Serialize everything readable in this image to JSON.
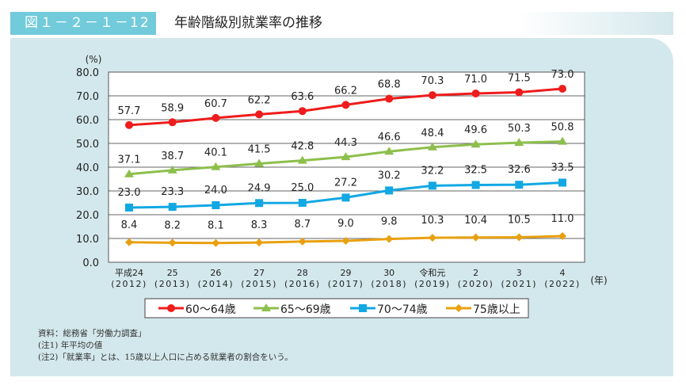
{
  "header": {
    "figure_number": "図１－２－１－12",
    "title": "年齢階級別就業率の推移"
  },
  "chart_data": {
    "type": "line",
    "ylabel": "(%)",
    "xlabel": "(年)",
    "ylim": [
      0,
      80
    ],
    "yticks": [
      "0.0",
      "10.0",
      "20.0",
      "30.0",
      "40.0",
      "50.0",
      "60.0",
      "70.0",
      "80.0"
    ],
    "categories": [
      [
        "平成24",
        "(2012)"
      ],
      [
        "25",
        "(2013)"
      ],
      [
        "26",
        "(2014)"
      ],
      [
        "27",
        "(2015)"
      ],
      [
        "28",
        "(2016)"
      ],
      [
        "29",
        "(2017)"
      ],
      [
        "30",
        "(2018)"
      ],
      [
        "令和元",
        "(2019)"
      ],
      [
        "2",
        "(2020)"
      ],
      [
        "3",
        "(2021)"
      ],
      [
        "4",
        "(2022)"
      ]
    ],
    "grid": true,
    "legend_position": "bottom",
    "series": [
      {
        "name": "60～64歳",
        "color": "#ee1c1c",
        "marker": "circle",
        "values": [
          57.7,
          58.9,
          60.7,
          62.2,
          63.6,
          66.2,
          68.8,
          70.3,
          71.0,
          71.5,
          73.0
        ]
      },
      {
        "name": "65～69歳",
        "color": "#8dbf4c",
        "marker": "triangle",
        "values": [
          37.1,
          38.7,
          40.1,
          41.5,
          42.8,
          44.3,
          46.6,
          48.4,
          49.6,
          50.3,
          50.8
        ]
      },
      {
        "name": "70～74歳",
        "color": "#12a8e3",
        "marker": "square",
        "values": [
          23.0,
          23.3,
          24.0,
          24.9,
          25.0,
          27.2,
          30.2,
          32.2,
          32.5,
          32.6,
          33.5
        ]
      },
      {
        "name": "75歳以上",
        "color": "#e9a010",
        "marker": "diamond",
        "values": [
          8.4,
          8.2,
          8.1,
          8.3,
          8.7,
          9.0,
          9.8,
          10.3,
          10.4,
          10.5,
          11.0
        ]
      }
    ]
  },
  "notes": [
    "資料：総務省「労働力調査」",
    "(注1) 年平均の値",
    "(注2)「就業率」とは、15歳以上人口に占める就業者の割合をいう。"
  ]
}
